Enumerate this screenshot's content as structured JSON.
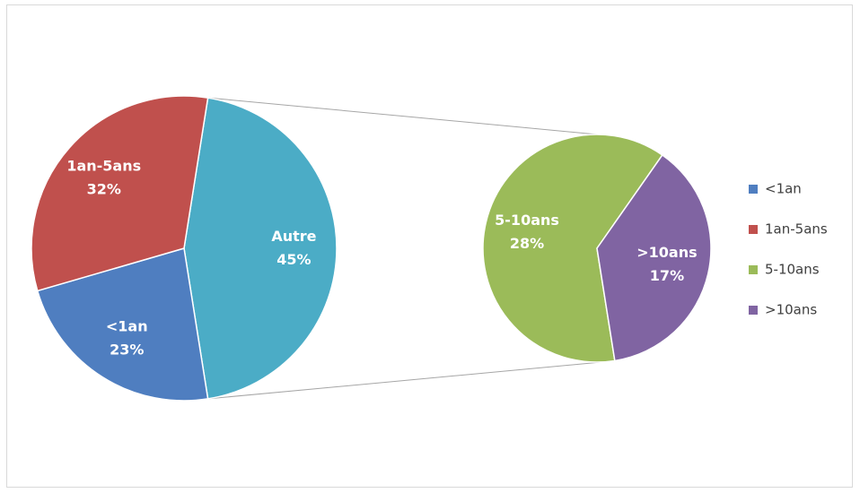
{
  "chart_data": {
    "type": "pie-of-pie",
    "categories": [
      "<1an",
      "1an-5ans",
      "5-10ans",
      ">10ans"
    ],
    "values": [
      23,
      32,
      28,
      17
    ],
    "value_labels": [
      "23%",
      "32%",
      "28%",
      "17%"
    ],
    "colors": [
      "#4f7ec0",
      "#c0504d",
      "#9bbb59",
      "#8064a2"
    ],
    "other_label": "Autre",
    "other_value": 45,
    "other_value_label": "45%",
    "other_color": "#4bacc6",
    "legend": "right"
  }
}
